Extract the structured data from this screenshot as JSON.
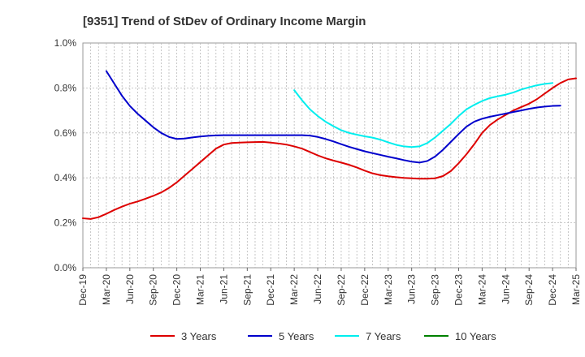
{
  "chart_data": {
    "type": "line",
    "title": "[9351]  Trend of StDev of Ordinary Income Margin",
    "xlabel": "",
    "ylabel": "",
    "x_tick_labels": [
      "Dec-19",
      "Mar-20",
      "Jun-20",
      "Sep-20",
      "Dec-20",
      "Mar-21",
      "Jun-21",
      "Sep-21",
      "Dec-21",
      "Mar-22",
      "Jun-22",
      "Sep-22",
      "Dec-22",
      "Mar-23",
      "Jun-23",
      "Sep-23",
      "Dec-23",
      "Mar-24",
      "Jun-24",
      "Sep-24",
      "Dec-24",
      "Mar-25"
    ],
    "y_tick_labels": [
      "0.0%",
      "0.2%",
      "0.4%",
      "0.6%",
      "0.8%",
      "1.0%"
    ],
    "ylim": [
      0,
      1.0
    ],
    "grid": true,
    "legend_position": "bottom",
    "series": [
      {
        "name": "3 Years",
        "color": "#dd0000",
        "start_index": 0,
        "values": [
          0.22,
          0.217,
          0.225,
          0.24,
          0.257,
          0.272,
          0.285,
          0.295,
          0.307,
          0.32,
          0.335,
          0.355,
          0.38,
          0.41,
          0.44,
          0.47,
          0.5,
          0.53,
          0.548,
          0.555,
          0.557,
          0.558,
          0.559,
          0.56,
          0.557,
          0.553,
          0.548,
          0.54,
          0.53,
          0.515,
          0.5,
          0.487,
          0.477,
          0.468,
          0.458,
          0.446,
          0.432,
          0.42,
          0.412,
          0.407,
          0.403,
          0.4,
          0.398,
          0.396,
          0.396,
          0.398,
          0.408,
          0.43,
          0.465,
          0.505,
          0.55,
          0.6,
          0.635,
          0.66,
          0.68,
          0.7,
          0.715,
          0.73,
          0.75,
          0.775,
          0.8,
          0.822,
          0.838,
          0.843
        ]
      },
      {
        "name": "5 Years",
        "color": "#0000cc",
        "start_index": 3,
        "values": [
          0.875,
          0.82,
          0.765,
          0.72,
          0.685,
          0.655,
          0.625,
          0.6,
          0.582,
          0.573,
          0.575,
          0.58,
          0.584,
          0.587,
          0.589,
          0.59,
          0.59,
          0.59,
          0.59,
          0.59,
          0.59,
          0.59,
          0.59,
          0.59,
          0.59,
          0.59,
          0.588,
          0.582,
          0.573,
          0.562,
          0.55,
          0.538,
          0.528,
          0.518,
          0.51,
          0.502,
          0.494,
          0.487,
          0.479,
          0.472,
          0.468,
          0.475,
          0.495,
          0.525,
          0.56,
          0.595,
          0.628,
          0.65,
          0.663,
          0.672,
          0.679,
          0.686,
          0.693,
          0.7,
          0.707,
          0.713,
          0.717,
          0.72,
          0.721
        ]
      },
      {
        "name": "7 Years",
        "color": "#00eeee",
        "start_index": 27,
        "values": [
          0.79,
          0.745,
          0.705,
          0.675,
          0.65,
          0.63,
          0.612,
          0.6,
          0.592,
          0.585,
          0.579,
          0.57,
          0.558,
          0.547,
          0.54,
          0.537,
          0.54,
          0.555,
          0.58,
          0.61,
          0.64,
          0.675,
          0.705,
          0.725,
          0.742,
          0.755,
          0.763,
          0.77,
          0.78,
          0.793,
          0.803,
          0.812,
          0.818,
          0.822
        ]
      },
      {
        "name": "10 Years",
        "color": "#008000",
        "start_index": 0,
        "values": []
      }
    ]
  }
}
